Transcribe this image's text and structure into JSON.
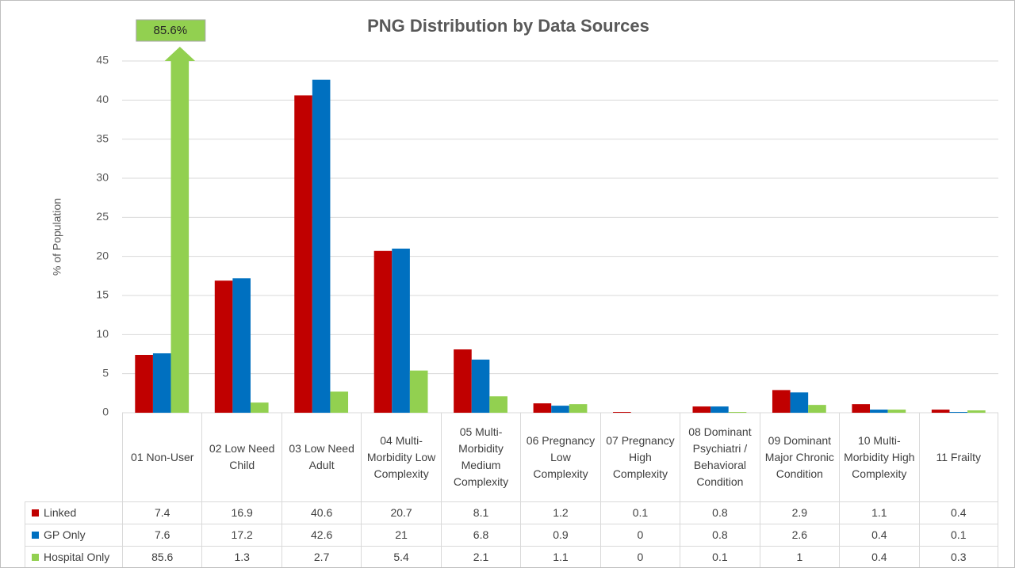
{
  "chart_data": {
    "type": "bar",
    "title": "PNG Distribution by Data Sources",
    "y_label": "% of Population",
    "categories": [
      "01 Non-User",
      "02 Low Need Child",
      "03 Low Need Adult",
      "04 Multi-Morbidity Low Complexity",
      "05 Multi-Morbidity Medium Complexity",
      "06 Pregnancy Low Complexity",
      "07 Pregnancy High Complexity",
      "08 Dominant Psychiatri / Behavioral Condition",
      "09 Dominant Major Chronic Condition",
      "10 Multi-Morbidity High Complexity",
      "11 Frailty"
    ],
    "series": [
      {
        "name": "Linked",
        "color": "#c00000",
        "values": [
          7.4,
          16.9,
          40.6,
          20.7,
          8.1,
          1.2,
          0.1,
          0.8,
          2.9,
          1.1,
          0.4
        ]
      },
      {
        "name": "GP Only",
        "color": "#0070c0",
        "values": [
          7.6,
          17.2,
          42.6,
          21,
          6.8,
          0.9,
          0,
          0.8,
          2.6,
          0.4,
          0.1
        ]
      },
      {
        "name": "Hospital Only",
        "color": "#92d050",
        "values": [
          85.6,
          1.3,
          2.7,
          5.4,
          2.1,
          1.1,
          0,
          0.1,
          1,
          0.4,
          0.3
        ],
        "value_labels": [
          "85.6%",
          null,
          null,
          null,
          null,
          null,
          null,
          null,
          null,
          null,
          null
        ]
      }
    ],
    "ylim": [
      0,
      45
    ],
    "yticks": [
      0,
      5,
      10,
      15,
      20,
      25,
      30,
      35,
      40,
      45
    ],
    "grid": true,
    "data_table": true
  }
}
